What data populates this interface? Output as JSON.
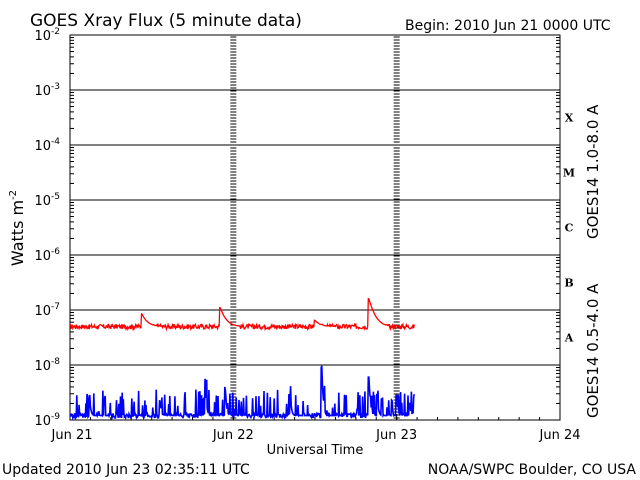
{
  "chart_data": {
    "type": "line",
    "title": "GOES Xray Flux (5 minute data)",
    "begin_text": "Begin:  2010 Jun 21 0000 UTC",
    "xlabel": "Universal Time",
    "ylabel": "Watts m",
    "ylabel_superscript": "-2",
    "yscale": "log",
    "ylim": [
      1e-09,
      0.01
    ],
    "y_tick_labels": [
      {
        "value": 0.01,
        "base": "10",
        "exp": "-2"
      },
      {
        "value": 0.001,
        "base": "10",
        "exp": "-3"
      },
      {
        "value": 0.0001,
        "base": "10",
        "exp": "-4"
      },
      {
        "value": 1e-05,
        "base": "10",
        "exp": "-5"
      },
      {
        "value": 1e-06,
        "base": "10",
        "exp": "-6"
      },
      {
        "value": 1e-07,
        "base": "10",
        "exp": "-7"
      },
      {
        "value": 1e-08,
        "base": "10",
        "exp": "-8"
      },
      {
        "value": 1e-09,
        "base": "10",
        "exp": "-9"
      }
    ],
    "xlim_days": [
      0,
      3
    ],
    "x_tick_labels": [
      {
        "day": 0,
        "label": "Jun 21"
      },
      {
        "day": 1,
        "label": "Jun 22"
      },
      {
        "day": 2,
        "label": "Jun 23"
      },
      {
        "day": 3,
        "label": "Jun 24"
      }
    ],
    "flare_classes": [
      {
        "label": "X",
        "low": 0.0001,
        "high": 0.001
      },
      {
        "label": "M",
        "low": 1e-05,
        "high": 0.0001
      },
      {
        "label": "C",
        "low": 1e-06,
        "high": 1e-05
      },
      {
        "label": "B",
        "low": 1e-07,
        "high": 1e-06
      },
      {
        "label": "A",
        "low": 1e-08,
        "high": 1e-07
      }
    ],
    "series": [
      {
        "name": "GOES14 1.0-8.0 A",
        "color": "#ff0000",
        "baseline": 5e-08,
        "end_day": 2.11,
        "peaks": [
          {
            "day": 0.44,
            "value": 8.5e-08
          },
          {
            "day": 0.92,
            "value": 1.1e-07
          },
          {
            "day": 1.5,
            "value": 6.5e-08
          },
          {
            "day": 1.83,
            "value": 1.6e-07
          }
        ]
      },
      {
        "name": "GOES14 0.5-4.0 A",
        "color": "#0000ff",
        "baseline": 1.2e-09,
        "end_day": 2.11,
        "peaks": [
          {
            "day": 0.12,
            "value": 2.5e-09
          },
          {
            "day": 0.55,
            "value": 2.3e-09
          },
          {
            "day": 0.83,
            "value": 3.5e-09
          },
          {
            "day": 0.95,
            "value": 4e-09
          },
          {
            "day": 1.35,
            "value": 2.5e-09
          },
          {
            "day": 1.83,
            "value": 6e-09
          },
          {
            "day": 2.0,
            "value": 2.8e-09
          },
          {
            "day": 2.08,
            "value": 2e-09
          },
          {
            "day": 1.88,
            "value": 3e-09
          },
          {
            "day": 1.54,
            "value": 9e-09
          }
        ]
      }
    ],
    "grid": "horizontal at each decade, dashed vertical ticks at day boundaries",
    "legend_placement": "right (vertical labels)"
  },
  "footer": {
    "updated": "Updated 2010 Jun 23 02:35:11 UTC",
    "credit": "NOAA/SWPC Boulder, CO USA"
  }
}
